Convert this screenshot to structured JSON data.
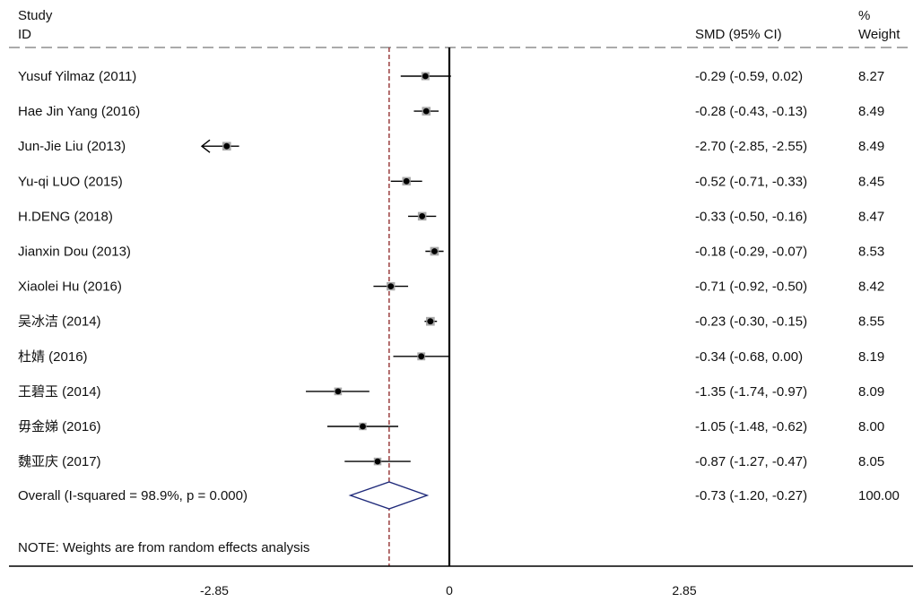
{
  "header": {
    "study_line1": "Study",
    "study_line2": "ID",
    "effect_label": "SMD (95% CI)",
    "weight_line1": "%",
    "weight_line2": "Weight"
  },
  "note": "NOTE: Weights are from random effects analysis",
  "colors": {
    "ci_line": "#000000",
    "point": "#000000",
    "weight_box": "#9a9a9a",
    "diamond": "#1f2a7a",
    "overall_line": "#8b2020",
    "zero_line": "#000000",
    "header_dash": "#aaaaaa"
  },
  "chart_data": {
    "type": "forest",
    "measure": "SMD",
    "xlim": [
      -2.85,
      2.85
    ],
    "x_ticks": [
      "-2.85",
      "0",
      "2.85"
    ],
    "null_line": 0,
    "studies": [
      {
        "label": "Yusuf Yilmaz  (2011)",
        "est": -0.29,
        "lo": -0.59,
        "hi": 0.02,
        "ci_text": "-0.29 (-0.59, 0.02)",
        "weight": 8.27,
        "weight_text": "8.27"
      },
      {
        "label": "Hae Jin Yang  (2016)",
        "est": -0.28,
        "lo": -0.43,
        "hi": -0.13,
        "ci_text": "-0.28 (-0.43, -0.13)",
        "weight": 8.49,
        "weight_text": "8.49"
      },
      {
        "label": "Jun-Jie Liu  (2013)",
        "est": -2.7,
        "lo": -2.85,
        "hi": -2.55,
        "ci_text": "-2.70 (-2.85, -2.55)",
        "weight": 8.49,
        "weight_text": "8.49",
        "arrow_left": true
      },
      {
        "label": "Yu-qi LUO  (2015)",
        "est": -0.52,
        "lo": -0.71,
        "hi": -0.33,
        "ci_text": "-0.52 (-0.71, -0.33)",
        "weight": 8.45,
        "weight_text": "8.45"
      },
      {
        "label": "H.DENG (2018)",
        "est": -0.33,
        "lo": -0.5,
        "hi": -0.16,
        "ci_text": "-0.33 (-0.50, -0.16)",
        "weight": 8.47,
        "weight_text": "8.47"
      },
      {
        "label": "Jianxin Dou  (2013)",
        "est": -0.18,
        "lo": -0.29,
        "hi": -0.07,
        "ci_text": "-0.18 (-0.29, -0.07)",
        "weight": 8.53,
        "weight_text": "8.53"
      },
      {
        "label": "Xiaolei Hu  (2016)",
        "est": -0.71,
        "lo": -0.92,
        "hi": -0.5,
        "ci_text": "-0.71 (-0.92, -0.50)",
        "weight": 8.42,
        "weight_text": "8.42"
      },
      {
        "label": "吴冰洁 (2014)",
        "est": -0.23,
        "lo": -0.3,
        "hi": -0.15,
        "ci_text": "-0.23 (-0.30, -0.15)",
        "weight": 8.55,
        "weight_text": "8.55"
      },
      {
        "label": "杜婧 (2016)",
        "est": -0.34,
        "lo": -0.68,
        "hi": 0.0,
        "ci_text": "-0.34 (-0.68, 0.00)",
        "weight": 8.19,
        "weight_text": "8.19"
      },
      {
        "label": "王碧玉 (2014)",
        "est": -1.35,
        "lo": -1.74,
        "hi": -0.97,
        "ci_text": "-1.35 (-1.74, -0.97)",
        "weight": 8.09,
        "weight_text": "8.09"
      },
      {
        "label": "毋金娣 (2016)",
        "est": -1.05,
        "lo": -1.48,
        "hi": -0.62,
        "ci_text": "-1.05 (-1.48, -0.62)",
        "weight": 8.0,
        "weight_text": "8.00"
      },
      {
        "label": "魏亚庆 (2017)",
        "est": -0.87,
        "lo": -1.27,
        "hi": -0.47,
        "ci_text": "-0.87 (-1.27, -0.47)",
        "weight": 8.05,
        "weight_text": "8.05"
      }
    ],
    "overall": {
      "label": "Overall  (I-squared = 98.9%, p = 0.000)",
      "est": -0.73,
      "lo": -1.2,
      "hi": -0.27,
      "ci_text": "-0.73 (-1.20, -0.27)",
      "weight_text": "100.00"
    }
  }
}
